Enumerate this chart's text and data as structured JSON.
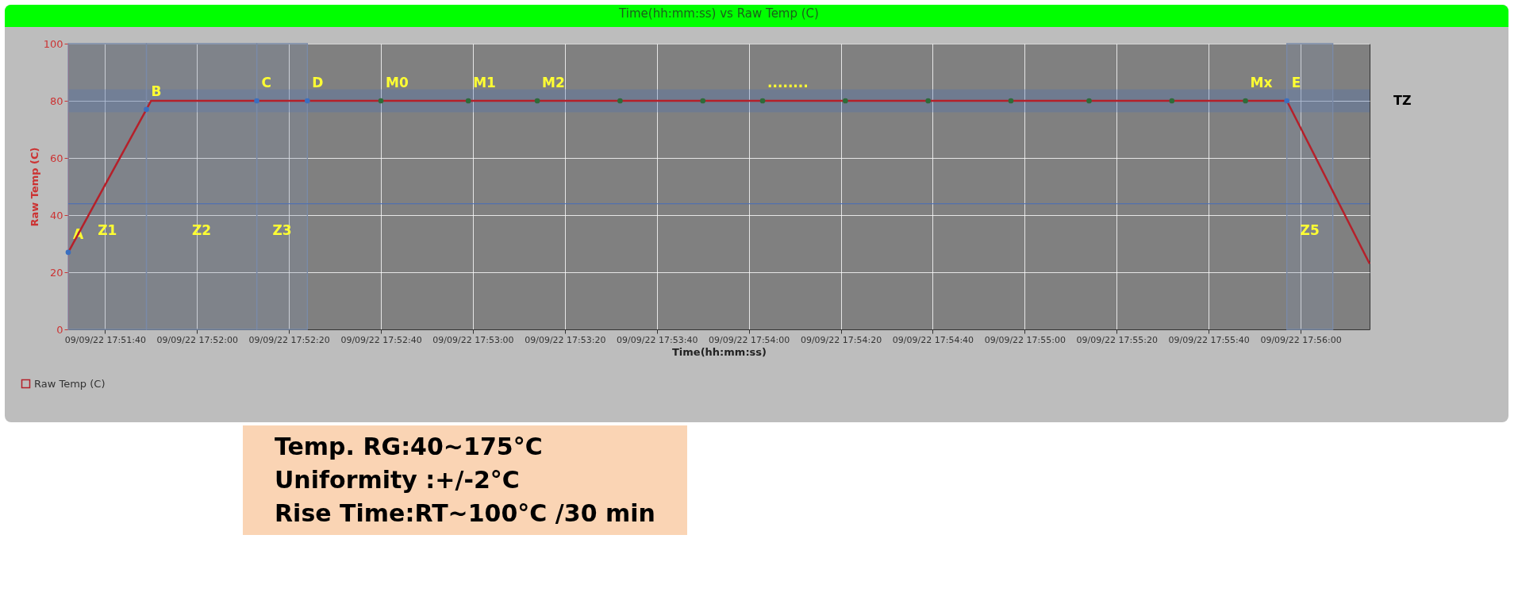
{
  "chart_data": {
    "type": "line",
    "title": "Time(hh:mm:ss) vs Raw Temp (C)",
    "xlabel": "Time(hh:mm:ss)",
    "ylabel": "Raw Temp (C)",
    "x": [
      "--09-09T17:51:32",
      "--09-09T17:51:49",
      "--09-09T17:51:50",
      "--09-09T17:52:13",
      "--09-09T17:52:24",
      "--09-09T17:52:40",
      "--09-09T17:52:59",
      "--09-09T17:53:14",
      "--09-09T17:53:32",
      "--09-09T17:53:50",
      "--09-09T17:54:03",
      "--09-09T17:54:21",
      "--09-09T17:54:39",
      "--09-09T17:54:57",
      "--09-09T17:55:14",
      "--09-09T17:55:32",
      "--09-09T17:55:48",
      "--09-09T17:55:57",
      "--09-09T17:56:15"
    ],
    "series": [
      {
        "name": "Raw Temp (C)",
        "color": "#b5202a",
        "values": [
          27,
          77,
          80,
          80,
          80,
          80,
          80,
          80,
          80,
          80,
          80,
          80,
          80,
          80,
          80,
          80,
          80,
          80,
          23
        ]
      },
      {
        "type": "scatter",
        "marker": "circle",
        "x": [
          "--09-09T17:51:32",
          "--09-09T17:51:49",
          "--09-09T17:52:13",
          "--09-09T17:52:24",
          "--09-09T17:52:40",
          "--09-09T17:52:59",
          "--09-09T17:53:14",
          "--09-09T17:53:32",
          "--09-09T17:53:50",
          "--09-09T17:54:03",
          "--09-09T17:54:21",
          "--09-09T17:54:39",
          "--09-09T17:54:57",
          "--09-09T17:55:14",
          "--09-09T17:55:32",
          "--09-09T17:55:48",
          "--09-09T17:55:57"
        ],
        "values": [
          27,
          77,
          80,
          80,
          80,
          80,
          80,
          80,
          80,
          80,
          80,
          80,
          80,
          80,
          80,
          80,
          80
        ],
        "colors": [
          "#3a6fc0",
          "#3a6fc0",
          "#3a6fc0",
          "#3a6fc0",
          "#2e6b3a",
          "#2e6b3a",
          "#2e6b3a",
          "#2e6b3a",
          "#2e6b3a",
          "#2e6b3a",
          "#2e6b3a",
          "#2e6b3a",
          "#2e6b3a",
          "#2e6b3a",
          "#2e6b3a",
          "#2e6b3a",
          "#3a6fc0"
        ]
      }
    ],
    "xlim": [
      "--09-09T17:51:32",
      "--09-09T17:56:15"
    ],
    "xticks": [
      {
        "value": "--09-09T17:51:40",
        "label": "09/09/22 17:51:40"
      },
      {
        "value": "--09-09T17:52:00",
        "label": "09/09/22 17:52:00"
      },
      {
        "value": "--09-09T17:52:20",
        "label": "09/09/22 17:52:20"
      },
      {
        "value": "--09-09T17:52:40",
        "label": "09/09/22 17:52:40"
      },
      {
        "value": "--09-09T17:53:00",
        "label": "09/09/22 17:53:00"
      },
      {
        "value": "--09-09T17:53:20",
        "label": "09/09/22 17:53:20"
      },
      {
        "value": "--09-09T17:53:40",
        "label": "09/09/22 17:53:40"
      },
      {
        "value": "--09-09T17:54:00",
        "label": "09/09/22 17:54:00"
      },
      {
        "value": "--09-09T17:54:20",
        "label": "09/09/22 17:54:20"
      },
      {
        "value": "--09-09T17:54:40",
        "label": "09/09/22 17:54:40"
      },
      {
        "value": "--09-09T17:55:00",
        "label": "09/09/22 17:55:00"
      },
      {
        "value": "--09-09T17:55:20",
        "label": "09/09/22 17:55:20"
      },
      {
        "value": "--09-09T17:55:40",
        "label": "09/09/22 17:55:40"
      },
      {
        "value": "--09-09T17:56:00",
        "label": "09/09/22 17:56:00"
      }
    ],
    "ylim": [
      0,
      100
    ],
    "yticks": [
      0,
      20,
      40,
      60,
      80,
      100
    ],
    "grid": true,
    "legend": "bottom left",
    "ref_lines": [
      {
        "axis": "y",
        "value": 44,
        "color": "#4a6fb5",
        "line_style": "solid"
      }
    ],
    "bands": [
      {
        "axis": "y",
        "from": 76,
        "to": 84,
        "label": "TZ",
        "color": "#4a6fb5"
      },
      {
        "axis": "x",
        "from": "--09-09T17:51:32",
        "to": "--09-09T17:51:49",
        "label": "Z1",
        "color": "#7a8aa8"
      },
      {
        "axis": "x",
        "from": "--09-09T17:51:49",
        "to": "--09-09T17:52:13",
        "label": "Z2",
        "color": "#7a8aa8"
      },
      {
        "axis": "x",
        "from": "--09-09T17:52:13",
        "to": "--09-09T17:52:24",
        "label": "Z3",
        "color": "#7a8aa8"
      },
      {
        "axis": "x",
        "from": "--09-09T17:55:57",
        "to": "--09-09T17:56:07",
        "label": "Z5",
        "color": "#7a8aa8"
      }
    ],
    "annotations": [
      {
        "text": "A",
        "x": "--09-09T17:51:32",
        "y": 27
      },
      {
        "text": "B",
        "x": "--09-09T17:51:49",
        "y": 77
      },
      {
        "text": "C",
        "x": "--09-09T17:52:13",
        "y": 80
      },
      {
        "text": "D",
        "x": "--09-09T17:52:24",
        "y": 80
      },
      {
        "text": "M0",
        "x": "--09-09T17:52:40",
        "y": 80
      },
      {
        "text": "M1",
        "x": "--09-09T17:52:59",
        "y": 80
      },
      {
        "text": "M2",
        "x": "--09-09T17:53:14",
        "y": 80
      },
      {
        "text": "........",
        "x": "--09-09T17:54:03",
        "y": 80
      },
      {
        "text": "Mx",
        "x": "--09-09T17:55:48",
        "y": 80
      },
      {
        "text": "E",
        "x": "--09-09T17:55:57",
        "y": 80
      },
      "Temp. RG:40~175°C",
      "Uniformity :+/-2°C",
      "Rise Time:RT~100°C /30 min"
    ]
  }
}
